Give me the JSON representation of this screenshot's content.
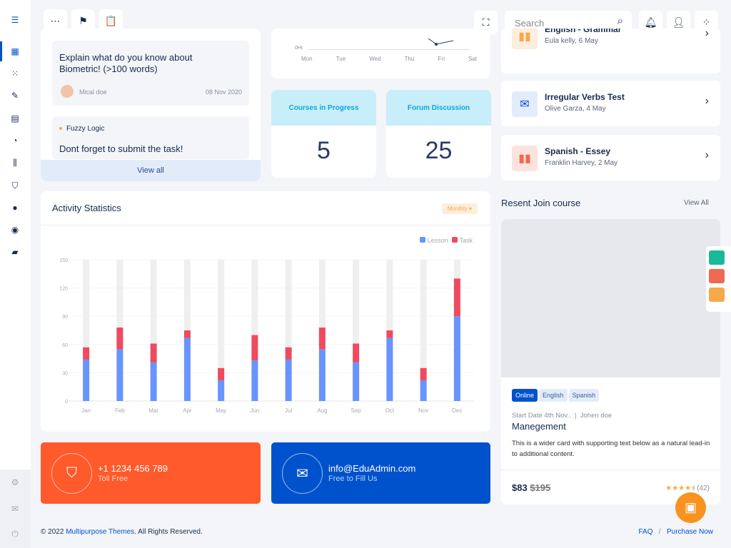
{
  "topbar": {
    "search_placeholder": "Search"
  },
  "left_card": {
    "question": "Explain what do you know about Biometric! (>100 words)",
    "author": "Mical doe",
    "date": "08 Nov 2020",
    "topic": "Fuzzy Logic",
    "topic_text": "Dont forget to submit the task!",
    "view_all": "View all"
  },
  "week_chart": {
    "y_label": "0Hr",
    "days": [
      "Mon",
      "Tue",
      "Wed",
      "Thu",
      "Fri",
      "Sat"
    ]
  },
  "stats": [
    {
      "label": "Courses in Progress",
      "value": "5"
    },
    {
      "label": "Forum Discussion",
      "value": "25"
    }
  ],
  "lessons": [
    {
      "title": "English - Grammar",
      "sub": "Eula kelly, 6 May",
      "color": "#f7a94b",
      "bg": "#fdeedd"
    },
    {
      "title": "Irregular Verbs Test",
      "sub": "Olive Garza, 4 May",
      "color": "#0052cc",
      "bg": "#e3ecfa"
    },
    {
      "title": "Spanish - Essey",
      "sub": "Franklin Harvey, 2 May",
      "color": "#ee6a50",
      "bg": "#fde3de"
    }
  ],
  "activity": {
    "title": "Activity Statistics",
    "filter": "Monthly"
  },
  "chart_data": {
    "type": "bar",
    "stacked": true,
    "categories": [
      "Jan",
      "Feb",
      "Mar",
      "Apr",
      "May",
      "Jun",
      "Jul",
      "Aug",
      "Sep",
      "Oct",
      "Nov",
      "Dec"
    ],
    "series": [
      {
        "name": "Lesson",
        "color": "#6993ff",
        "values": [
          44,
          55,
          41,
          67,
          22,
          43,
          44,
          55,
          41,
          67,
          22,
          90
        ]
      },
      {
        "name": "Task",
        "color": "#ee4b5e",
        "values": [
          13,
          23,
          20,
          8,
          13,
          27,
          13,
          23,
          20,
          8,
          13,
          40
        ]
      }
    ],
    "yticks": [
      0,
      30,
      60,
      90,
      120,
      150
    ],
    "ylim": [
      0,
      150
    ],
    "legend": "top-right",
    "background_bar_max": 150
  },
  "course": {
    "heading": "Resent Join course",
    "view_all": "View All",
    "tags": [
      "Online",
      "English",
      "Spanish"
    ],
    "meta_date": "Start Date 4th Nov..",
    "meta_author": "Johen doe",
    "title": "Manegement",
    "text": "This is a wider card with supporting text below as a natural lead-in to additional content.",
    "price": "$83",
    "old_price": "$195",
    "rating": 4.5,
    "reviews": "(42)"
  },
  "contacts": [
    {
      "line1": "+1 1234 456 789",
      "line2": "Toll Free",
      "color": "#fe5a2c"
    },
    {
      "line1": "info@EduAdmin.com",
      "line2": "Free to Fill Us",
      "color": "#0052cc"
    }
  ],
  "footer": {
    "copyright": "© 2022",
    "brand": "Multipurpose Themes",
    "rights": ". All Rights Reserved.",
    "faq": "FAQ",
    "sep": "/",
    "purchase": "Purchase Now"
  }
}
